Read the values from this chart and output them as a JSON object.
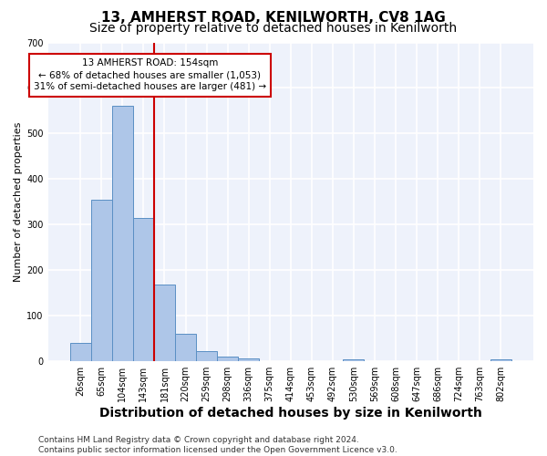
{
  "title": "13, AMHERST ROAD, KENILWORTH, CV8 1AG",
  "subtitle": "Size of property relative to detached houses in Kenilworth",
  "xlabel": "Distribution of detached houses by size in Kenilworth",
  "ylabel": "Number of detached properties",
  "footer_line1": "Contains HM Land Registry data © Crown copyright and database right 2024.",
  "footer_line2": "Contains public sector information licensed under the Open Government Licence v3.0.",
  "bin_labels": [
    "26sqm",
    "65sqm",
    "104sqm",
    "143sqm",
    "181sqm",
    "220sqm",
    "259sqm",
    "298sqm",
    "336sqm",
    "375sqm",
    "414sqm",
    "453sqm",
    "492sqm",
    "530sqm",
    "569sqm",
    "608sqm",
    "647sqm",
    "686sqm",
    "724sqm",
    "763sqm",
    "802sqm"
  ],
  "bar_values": [
    40,
    355,
    560,
    315,
    168,
    60,
    22,
    10,
    7,
    0,
    0,
    0,
    0,
    5,
    0,
    0,
    0,
    0,
    0,
    0,
    5
  ],
  "bar_color": "#aec6e8",
  "bar_edgecolor": "#5a8fc4",
  "vline_color": "#cc0000",
  "vline_position": 3.5,
  "annotation_text": "13 AMHERST ROAD: 154sqm\n← 68% of detached houses are smaller (1,053)\n31% of semi-detached houses are larger (481) →",
  "annotation_box_edgecolor": "#cc0000",
  "annotation_box_facecolor": "white",
  "ylim": [
    0,
    700
  ],
  "yticks": [
    0,
    100,
    200,
    300,
    400,
    500,
    600,
    700
  ],
  "background_color": "#eef2fb",
  "grid_color": "white",
  "title_fontsize": 11,
  "subtitle_fontsize": 10,
  "xlabel_fontsize": 10,
  "ylabel_fontsize": 8,
  "tick_fontsize": 7,
  "footer_fontsize": 6.5,
  "annotation_fontsize": 7.5
}
